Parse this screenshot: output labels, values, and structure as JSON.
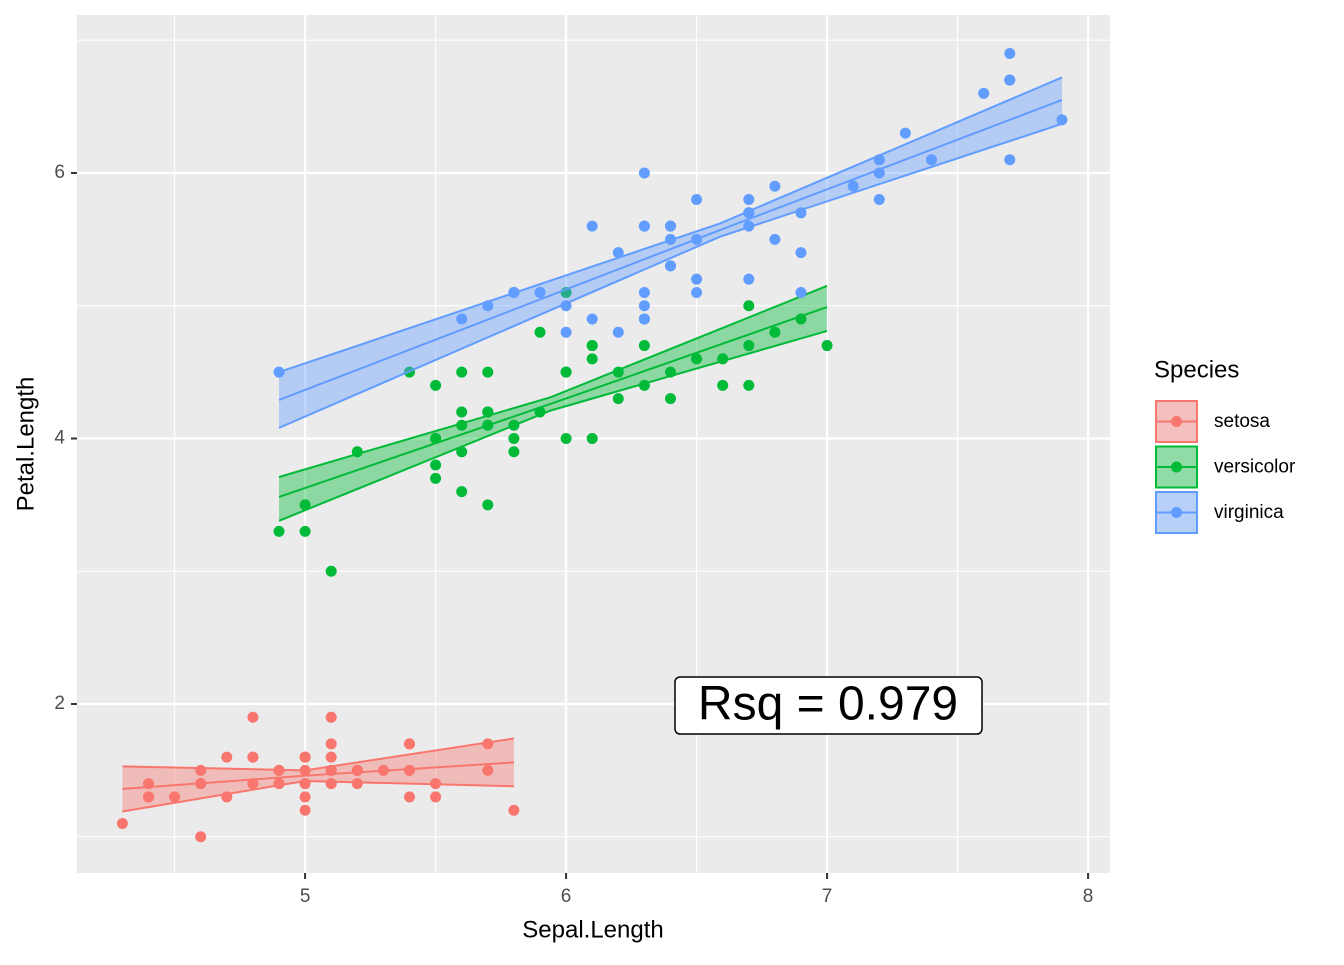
{
  "chart_data": {
    "type": "scatter",
    "x_label": "Sepal.Length",
    "y_label": "Petal.Length",
    "legend_title": "Species",
    "legend_position": "right",
    "annotation": "Rsq = 0.979",
    "xlim": [
      4.126,
      8.084
    ],
    "ylim": [
      0.727,
      7.19
    ],
    "xticks": [
      5,
      6,
      7,
      8
    ],
    "yticks": [
      2,
      4,
      6
    ],
    "grid": true,
    "series": [
      {
        "name": "setosa",
        "color": "#F8766D",
        "x": [
          5.1,
          4.9,
          4.7,
          4.6,
          5.0,
          5.4,
          4.6,
          5.0,
          4.4,
          4.9,
          5.4,
          4.8,
          4.8,
          4.3,
          5.8,
          5.7,
          5.4,
          5.1,
          5.7,
          5.1,
          5.4,
          5.1,
          4.6,
          5.1,
          4.8,
          5.0,
          5.0,
          5.2,
          5.2,
          4.7,
          4.8,
          5.4,
          5.2,
          5.5,
          4.9,
          5.0,
          5.5,
          4.9,
          4.4,
          5.1,
          5.0,
          4.5,
          4.4,
          5.0,
          5.1,
          4.8,
          5.1,
          4.6,
          5.3,
          5.0
        ],
        "values": [
          1.4,
          1.4,
          1.3,
          1.5,
          1.4,
          1.7,
          1.4,
          1.5,
          1.4,
          1.5,
          1.5,
          1.6,
          1.4,
          1.1,
          1.2,
          1.5,
          1.3,
          1.4,
          1.7,
          1.5,
          1.7,
          1.5,
          1.0,
          1.7,
          1.9,
          1.6,
          1.6,
          1.5,
          1.4,
          1.6,
          1.6,
          1.5,
          1.5,
          1.4,
          1.5,
          1.2,
          1.3,
          1.4,
          1.3,
          1.5,
          1.3,
          1.3,
          1.3,
          1.6,
          1.9,
          1.4,
          1.6,
          1.4,
          1.5,
          1.4
        ],
        "fit": {
          "x": [
            4.3,
            5.0,
            5.8
          ],
          "y": [
            1.36,
            1.46,
            1.56
          ],
          "lower": [
            1.19,
            1.42,
            1.38
          ],
          "upper": [
            1.53,
            1.5,
            1.74
          ]
        }
      },
      {
        "name": "versicolor",
        "color": "#00BA38",
        "x": [
          7.0,
          6.4,
          6.9,
          5.5,
          6.5,
          5.7,
          6.3,
          4.9,
          6.6,
          5.2,
          5.0,
          5.9,
          6.0,
          6.1,
          5.6,
          6.7,
          5.6,
          5.8,
          6.2,
          5.6,
          5.9,
          6.1,
          6.3,
          6.1,
          6.4,
          6.6,
          6.8,
          6.7,
          6.0,
          5.7,
          5.5,
          5.5,
          5.8,
          6.0,
          5.4,
          6.0,
          6.7,
          6.3,
          5.6,
          5.5,
          5.5,
          6.1,
          5.8,
          5.0,
          5.6,
          5.7,
          5.7,
          6.2,
          5.1,
          5.7
        ],
        "values": [
          4.7,
          4.5,
          4.9,
          4.0,
          4.6,
          4.5,
          4.7,
          3.3,
          4.6,
          3.9,
          3.5,
          4.2,
          4.0,
          4.7,
          3.6,
          4.4,
          4.5,
          4.1,
          4.5,
          3.9,
          4.8,
          4.0,
          4.9,
          4.7,
          4.3,
          4.4,
          4.8,
          5.0,
          4.5,
          3.5,
          3.8,
          3.7,
          3.9,
          5.1,
          4.5,
          4.5,
          4.7,
          4.4,
          4.1,
          4.0,
          4.4,
          4.6,
          4.0,
          3.3,
          4.2,
          4.2,
          4.2,
          4.3,
          3.0,
          4.1
        ],
        "fit": {
          "x": [
            4.9,
            5.94,
            7.0
          ],
          "y": [
            3.56,
            4.26,
            4.99
          ],
          "lower": [
            3.38,
            4.21,
            4.81
          ],
          "upper": [
            3.71,
            4.31,
            5.15
          ]
        }
      },
      {
        "name": "virginica",
        "color": "#619CFF",
        "x": [
          6.3,
          5.8,
          7.1,
          6.3,
          6.5,
          7.6,
          4.9,
          7.3,
          6.7,
          7.2,
          6.5,
          6.4,
          6.8,
          5.7,
          5.8,
          6.4,
          6.5,
          7.7,
          7.7,
          6.0,
          6.9,
          5.6,
          7.7,
          6.3,
          6.7,
          7.2,
          6.2,
          6.1,
          6.4,
          7.2,
          7.4,
          7.9,
          6.4,
          6.3,
          6.1,
          7.7,
          6.3,
          6.4,
          6.0,
          6.9,
          6.7,
          6.9,
          5.8,
          6.8,
          6.7,
          6.7,
          6.3,
          6.5,
          6.2,
          5.9
        ],
        "values": [
          6.0,
          5.1,
          5.9,
          5.6,
          5.8,
          6.6,
          4.5,
          6.3,
          5.8,
          6.1,
          5.1,
          5.3,
          5.5,
          5.0,
          5.1,
          5.3,
          5.5,
          6.7,
          6.9,
          5.0,
          5.7,
          4.9,
          6.7,
          4.9,
          5.7,
          6.0,
          4.8,
          4.9,
          5.6,
          5.8,
          6.1,
          6.4,
          5.6,
          5.1,
          5.6,
          6.1,
          5.6,
          5.5,
          4.8,
          5.4,
          5.6,
          5.1,
          5.1,
          5.9,
          5.7,
          5.2,
          5.0,
          5.2,
          5.4,
          5.1
        ],
        "fit": {
          "x": [
            4.9,
            6.59,
            7.9
          ],
          "y": [
            4.29,
            5.57,
            6.55
          ],
          "lower": [
            4.08,
            5.52,
            6.37
          ],
          "upper": [
            4.5,
            5.62,
            6.72
          ]
        }
      }
    ]
  }
}
